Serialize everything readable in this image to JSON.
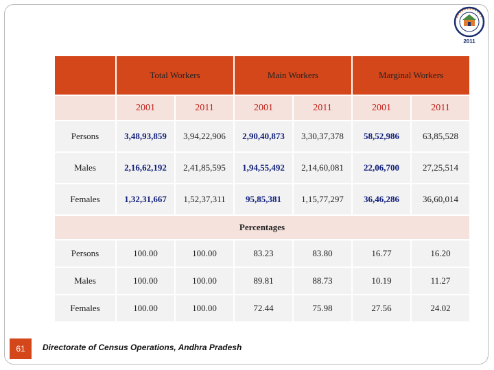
{
  "logo": {
    "year": "2011",
    "text": "भारत की जनगणना Census of India"
  },
  "header": {
    "groups": [
      "Total Workers",
      "Main Workers",
      "Marginal Workers"
    ]
  },
  "years": [
    "2001",
    "2011",
    "2001",
    "2011",
    "2001",
    "2011"
  ],
  "values": {
    "rows": [
      {
        "label": "Persons",
        "cells": [
          "3,48,93,859",
          "3,94,22,906",
          "2,90,40,873",
          "3,30,37,378",
          "58,52,986",
          "63,85,528"
        ]
      },
      {
        "label": "Males",
        "cells": [
          "2,16,62,192",
          "2,41,85,595",
          "1,94,55,492",
          "2,14,60,081",
          "22,06,700",
          "27,25,514"
        ]
      },
      {
        "label": "Females",
        "cells": [
          "1,32,31,667",
          "1,52,37,311",
          "95,85,381",
          "1,15,77,297",
          "36,46,286",
          "36,60,014"
        ]
      }
    ]
  },
  "percentages": {
    "title": "Percentages",
    "rows": [
      {
        "label": "Persons",
        "cells": [
          "100.00",
          "100.00",
          "83.23",
          "83.80",
          "16.77",
          "16.20"
        ]
      },
      {
        "label": "Males",
        "cells": [
          "100.00",
          "100.00",
          "89.81",
          "88.73",
          "10.19",
          "11.27"
        ]
      },
      {
        "label": "Females",
        "cells": [
          "100.00",
          "100.00",
          "72.44",
          "75.98",
          "27.56",
          "24.02"
        ]
      }
    ]
  },
  "footer": {
    "page_number": "61",
    "source": "Directorate of Census Operations, Andhra Pradesh"
  },
  "colors": {
    "accent": "#d4471b",
    "header_light": "#f6e2dc",
    "cell_bg": "#f2f2f2",
    "year_text": "#c0201a",
    "bold_value": "#0f1e7a"
  }
}
